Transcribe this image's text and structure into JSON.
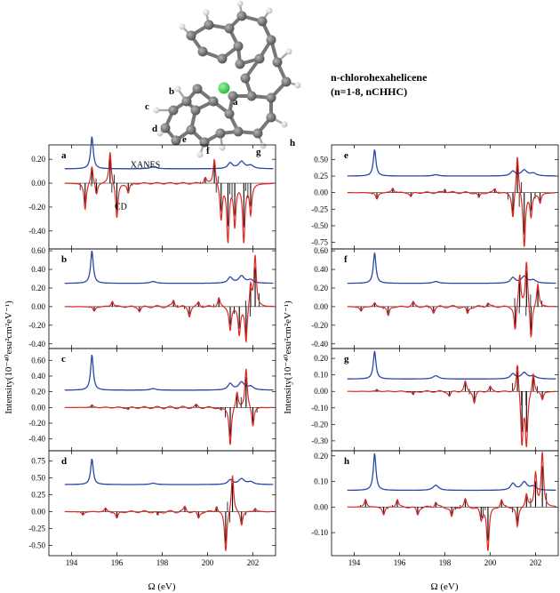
{
  "header": {
    "title_line1": "n-chlorohexahelicene",
    "title_line2": "(n=1-8, nCHHC)"
  },
  "molecule": {
    "atom_labels": [
      "a",
      "b",
      "c",
      "d",
      "e",
      "f",
      "g",
      "h"
    ],
    "atom_colors": {
      "carbon": "#555555",
      "hydrogen": "#bdbdbd",
      "chlorine": "#2bbf3a"
    }
  },
  "chart_data": {
    "type": "line",
    "xlabel": "Ω (eV)",
    "ylabel": "Intensity(10⁻⁴⁰esu²cm²eV⁻¹)",
    "xlim": [
      193,
      203
    ],
    "x_ticks": [
      194,
      196,
      198,
      200,
      202
    ],
    "series_colors": {
      "XANES": "#2b47a6",
      "CD": "#e0261f",
      "sticks": "#000000"
    },
    "series_names": [
      "XANES",
      "CD"
    ],
    "panels": [
      {
        "label": "a",
        "ylim": [
          -0.55,
          0.32
        ],
        "yticks": [
          -0.4,
          -0.2,
          0.0,
          0.2
        ],
        "xanes_base": 0.12,
        "xanes_peak": 0.27,
        "annotations": [
          {
            "text": "XANES",
            "x": 196.6,
            "y": 0.13
          },
          {
            "text": "CD",
            "x": 195.9,
            "y": -0.22
          }
        ],
        "cd_peaks": [
          [
            194.6,
            -0.22
          ],
          [
            194.9,
            0.15
          ],
          [
            195.1,
            -0.1
          ],
          [
            195.7,
            0.27
          ],
          [
            196.0,
            -0.3
          ],
          [
            196.5,
            -0.08
          ],
          [
            199.9,
            0.05
          ],
          [
            200.3,
            0.22
          ],
          [
            200.6,
            -0.3
          ],
          [
            200.9,
            -0.47
          ],
          [
            201.2,
            -0.35
          ],
          [
            201.6,
            -0.48
          ],
          [
            201.9,
            -0.25
          ]
        ]
      },
      {
        "label": "b",
        "ylim": [
          -0.45,
          0.62
        ],
        "yticks": [
          -0.4,
          -0.2,
          0.0,
          0.2,
          0.4,
          0.6
        ],
        "xanes_base": 0.25,
        "xanes_peak": 0.35,
        "annotations": [],
        "cd_peaks": [
          [
            195.0,
            -0.05
          ],
          [
            195.8,
            0.06
          ],
          [
            197.0,
            -0.05
          ],
          [
            198.5,
            0.07
          ],
          [
            199.2,
            -0.1
          ],
          [
            199.6,
            0.05
          ],
          [
            200.5,
            0.1
          ],
          [
            201.0,
            -0.25
          ],
          [
            201.4,
            -0.3
          ],
          [
            201.7,
            -0.4
          ],
          [
            201.9,
            0.25
          ],
          [
            202.1,
            0.55
          ]
        ]
      },
      {
        "label": "c",
        "ylim": [
          -0.55,
          0.75
        ],
        "yticks": [
          -0.4,
          -0.2,
          0.0,
          0.2,
          0.4,
          0.6
        ],
        "xanes_base": 0.22,
        "xanes_peak": 0.45,
        "annotations": [],
        "cd_peaks": [
          [
            194.9,
            0.03
          ],
          [
            196.5,
            -0.02
          ],
          [
            199.5,
            0.03
          ],
          [
            200.6,
            -0.03
          ],
          [
            201.0,
            -0.48
          ],
          [
            201.3,
            0.2
          ],
          [
            201.7,
            0.5
          ],
          [
            202.0,
            -0.25
          ]
        ]
      },
      {
        "label": "d",
        "ylim": [
          -0.65,
          0.9
        ],
        "yticks": [
          -0.5,
          -0.25,
          0.0,
          0.25,
          0.5,
          0.75
        ],
        "xanes_base": 0.4,
        "xanes_peak": 0.38,
        "annotations": [],
        "cd_peaks": [
          [
            194.5,
            -0.05
          ],
          [
            195.5,
            0.05
          ],
          [
            196.0,
            -0.1
          ],
          [
            197.8,
            -0.05
          ],
          [
            199.0,
            0.07
          ],
          [
            199.6,
            -0.1
          ],
          [
            200.4,
            0.08
          ],
          [
            200.8,
            -0.6
          ],
          [
            201.1,
            0.55
          ],
          [
            201.5,
            -0.2
          ],
          [
            202.1,
            0.05
          ]
        ]
      },
      {
        "label": "e",
        "ylim": [
          -0.85,
          0.72
        ],
        "yticks": [
          -0.75,
          -0.5,
          -0.25,
          0.0,
          0.25,
          0.5
        ],
        "xanes_base": 0.25,
        "xanes_peak": 0.4,
        "annotations": [],
        "cd_peaks": [
          [
            195.0,
            -0.1
          ],
          [
            195.7,
            0.07
          ],
          [
            196.5,
            -0.06
          ],
          [
            198.0,
            0.05
          ],
          [
            199.5,
            -0.08
          ],
          [
            200.2,
            0.06
          ],
          [
            201.0,
            -0.4
          ],
          [
            201.2,
            0.6
          ],
          [
            201.5,
            -0.82
          ],
          [
            201.8,
            -0.35
          ],
          [
            202.2,
            -0.15
          ]
        ]
      },
      {
        "label": "f",
        "ylim": [
          -0.45,
          0.62
        ],
        "yticks": [
          -0.4,
          -0.2,
          0.0,
          0.2,
          0.4,
          0.6
        ],
        "xanes_base": 0.25,
        "xanes_peak": 0.33,
        "annotations": [],
        "cd_peaks": [
          [
            194.3,
            -0.05
          ],
          [
            194.9,
            0.04
          ],
          [
            195.5,
            -0.1
          ],
          [
            196.6,
            0.05
          ],
          [
            197.5,
            -0.06
          ],
          [
            199.0,
            -0.08
          ],
          [
            199.9,
            0.04
          ],
          [
            201.1,
            -0.28
          ],
          [
            201.3,
            0.35
          ],
          [
            201.6,
            0.5
          ],
          [
            201.8,
            -0.38
          ],
          [
            202.1,
            0.25
          ]
        ]
      },
      {
        "label": "g",
        "ylim": [
          -0.36,
          0.26
        ],
        "yticks": [
          -0.3,
          -0.2,
          -0.1,
          0.0,
          0.1,
          0.2
        ],
        "xanes_base": 0.075,
        "xanes_peak": 0.17,
        "annotations": [],
        "cd_peaks": [
          [
            195.0,
            0.01
          ],
          [
            196.6,
            -0.02
          ],
          [
            198.2,
            -0.03
          ],
          [
            198.9,
            0.06
          ],
          [
            199.3,
            -0.07
          ],
          [
            200.0,
            0.03
          ],
          [
            201.2,
            0.19
          ],
          [
            201.4,
            -0.32
          ],
          [
            201.6,
            -0.32
          ],
          [
            201.9,
            0.12
          ],
          [
            202.3,
            -0.05
          ]
        ]
      },
      {
        "label": "h",
        "ylim": [
          -0.19,
          0.22
        ],
        "yticks": [
          -0.1,
          0.0,
          0.1,
          0.2
        ],
        "xanes_base": 0.065,
        "xanes_peak": 0.145,
        "annotations": [],
        "cd_peaks": [
          [
            194.5,
            0.03
          ],
          [
            195.3,
            -0.03
          ],
          [
            195.9,
            0.03
          ],
          [
            196.8,
            -0.03
          ],
          [
            197.6,
            0.02
          ],
          [
            198.3,
            -0.04
          ],
          [
            198.9,
            0.03
          ],
          [
            199.6,
            -0.05
          ],
          [
            199.9,
            -0.17
          ],
          [
            200.5,
            0.03
          ],
          [
            201.2,
            -0.08
          ],
          [
            201.6,
            0.05
          ],
          [
            202.0,
            0.13
          ],
          [
            202.3,
            0.21
          ]
        ]
      }
    ]
  }
}
